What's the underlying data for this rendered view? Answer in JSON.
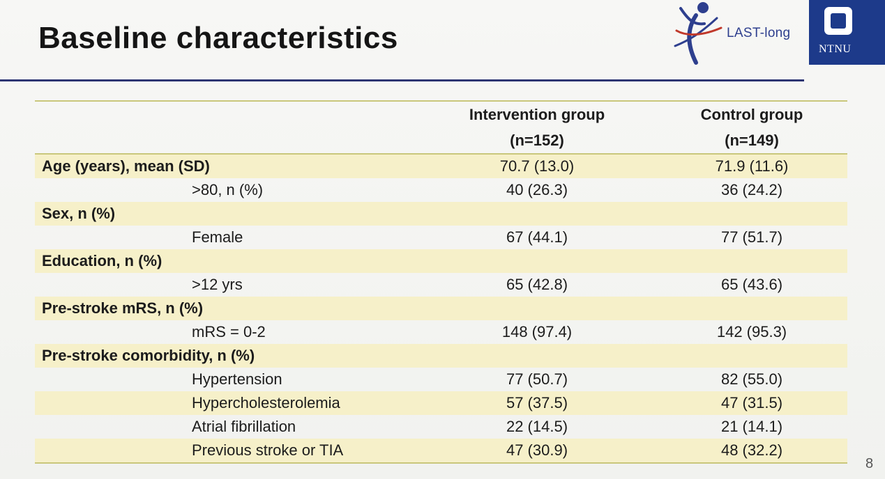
{
  "slide": {
    "title": "Baseline characteristics",
    "page_number": "8"
  },
  "logos": {
    "last_long": "LAST-long",
    "ntnu": "NTNU"
  },
  "colors": {
    "title_rule": "#2d3572",
    "shaded_row": "#f6f0c9",
    "table_rule": "#c9c77b",
    "ntnu_blue": "#1d3a8a",
    "last_blue": "#2e3f8e",
    "last_red": "#c0392b"
  },
  "table": {
    "headers": {
      "intervention": "Intervention group",
      "intervention_n": "(n=152)",
      "control": "Control group",
      "control_n": "(n=149)"
    },
    "rows": [
      {
        "label": "Age (years), mean (SD)",
        "intervention": "70.7 (13.0)",
        "control": "71.9 (11.6)"
      },
      {
        "label": ">80, n (%)",
        "intervention": "40 (26.3)",
        "control": "36 (24.2)"
      },
      {
        "label": "Sex, n (%)",
        "intervention": "",
        "control": ""
      },
      {
        "label": "Female",
        "intervention": "67 (44.1)",
        "control": "77 (51.7)"
      },
      {
        "label": "Education, n (%)",
        "intervention": "",
        "control": ""
      },
      {
        "label": ">12 yrs",
        "intervention": "65 (42.8)",
        "control": "65 (43.6)"
      },
      {
        "label": "Pre-stroke mRS, n (%)",
        "intervention": "",
        "control": ""
      },
      {
        "label": "mRS = 0-2",
        "intervention": "148 (97.4)",
        "control": "142 (95.3)"
      },
      {
        "label": "Pre-stroke comorbidity, n (%)",
        "intervention": "",
        "control": ""
      },
      {
        "label": "Hypertension",
        "intervention": "77 (50.7)",
        "control": "82 (55.0)"
      },
      {
        "label": "Hypercholesterolemia",
        "intervention": "57 (37.5)",
        "control": "47 (31.5)"
      },
      {
        "label": "Atrial fibrillation",
        "intervention": "22 (14.5)",
        "control": "21 (14.1)"
      },
      {
        "label": "Previous stroke or TIA",
        "intervention": "47 (30.9)",
        "control": "48 (32.2)"
      }
    ]
  }
}
